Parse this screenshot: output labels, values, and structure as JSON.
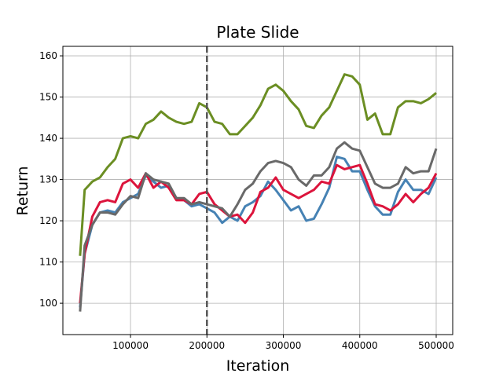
{
  "chart_data": {
    "type": "line",
    "title": "Plate Slide",
    "x_label": "Iteration",
    "y_label": "Return",
    "x": [
      34000,
      40000,
      50000,
      60000,
      70000,
      80000,
      90000,
      100000,
      110000,
      120000,
      130000,
      140000,
      150000,
      160000,
      170000,
      180000,
      190000,
      200000,
      210000,
      220000,
      230000,
      240000,
      250000,
      260000,
      270000,
      280000,
      290000,
      300000,
      310000,
      320000,
      330000,
      340000,
      350000,
      360000,
      370000,
      380000,
      390000,
      400000,
      410000,
      420000,
      430000,
      440000,
      450000,
      460000,
      470000,
      480000,
      490000,
      500000
    ],
    "series": [
      {
        "color": "#6b8e23",
        "values": [
          111.5,
          127.5,
          129.5,
          130.5,
          133,
          135,
          140,
          140.5,
          140,
          143.5,
          144.5,
          146.5,
          145,
          144,
          143.5,
          144,
          148.5,
          147.5,
          144,
          143.5,
          141,
          141,
          143,
          145,
          148,
          152,
          153,
          151.5,
          149,
          147,
          143,
          142.5,
          145.5,
          147.5,
          151.5,
          155.5,
          155,
          153,
          144.5,
          146,
          141,
          141,
          147.5,
          149,
          149,
          148.5,
          149.5,
          151
        ]
      },
      {
        "color": "#4682b4",
        "values": [
          99,
          112,
          119,
          122,
          122.5,
          122,
          124.5,
          125.5,
          126.5,
          131,
          129.5,
          128,
          128.5,
          125.5,
          125,
          123.5,
          124,
          123,
          122,
          119.5,
          121,
          120,
          123.5,
          124.5,
          126,
          129.5,
          127.5,
          125,
          122.5,
          123.5,
          120,
          120.5,
          124,
          128,
          135.5,
          135,
          132,
          132,
          127.5,
          123.5,
          121.5,
          121.5,
          127,
          130,
          127.5,
          127.5,
          126.5,
          130.5
        ]
      },
      {
        "color": "#dc143c",
        "values": [
          100,
          112,
          121,
          124.5,
          125,
          124.5,
          129,
          130,
          128,
          131.5,
          128,
          129.5,
          128,
          125,
          125,
          124,
          126.5,
          127,
          124,
          122.5,
          121,
          121.5,
          119.5,
          122,
          127,
          128,
          130.5,
          127.5,
          126.5,
          125.5,
          126.5,
          127.5,
          129.5,
          129,
          133.5,
          132.5,
          133,
          133.5,
          129,
          124,
          123.5,
          122.5,
          124,
          126.5,
          124.5,
          126.5,
          128,
          131.5
        ]
      },
      {
        "color": "#696969",
        "values": [
          98,
          114,
          119,
          122,
          122,
          121.5,
          124,
          126,
          125.5,
          131.5,
          130,
          129.5,
          129,
          125.5,
          125.5,
          124,
          124.5,
          124,
          123.5,
          123,
          121,
          124,
          127.5,
          129,
          132,
          134,
          134.5,
          134,
          133,
          130,
          128.5,
          131,
          131,
          133,
          137.5,
          139,
          137.5,
          137,
          133,
          129,
          128,
          128,
          129,
          133,
          131.5,
          132,
          132,
          137.5
        ]
      }
    ],
    "vline": 200000,
    "xlim": [
      11500,
      521600
    ],
    "ylim": [
      92.4,
      162.3
    ],
    "xticks": [
      100000,
      200000,
      300000,
      400000,
      500000
    ],
    "yticks": [
      100,
      110,
      120,
      130,
      140,
      150,
      160
    ],
    "grid": true
  }
}
